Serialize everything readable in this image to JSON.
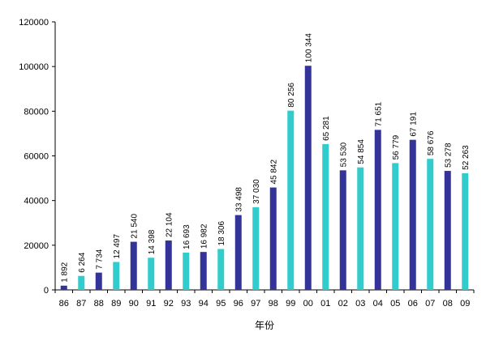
{
  "chart_data": {
    "type": "bar",
    "xlabel": "年份",
    "ylabel": "",
    "ylim": [
      0,
      120000
    ],
    "yticks": [
      0,
      20000,
      40000,
      60000,
      80000,
      100000,
      120000
    ],
    "grid": false,
    "legend": "none",
    "colors": {
      "dark": "#333399",
      "light": "#33CCCC"
    },
    "categories": [
      "86",
      "87",
      "88",
      "89",
      "90",
      "91",
      "92",
      "93",
      "94",
      "95",
      "96",
      "97",
      "98",
      "99",
      "00",
      "01",
      "02",
      "03",
      "04",
      "05",
      "06",
      "07",
      "08",
      "09"
    ],
    "values": [
      1892,
      6264,
      7734,
      12497,
      21540,
      14398,
      22104,
      16693,
      16982,
      18306,
      33498,
      37030,
      45842,
      80256,
      100344,
      65281,
      53530,
      54854,
      71651,
      56779,
      67191,
      58676,
      53278,
      52263
    ],
    "value_labels": [
      "1 892",
      "6 264",
      "7 734",
      "12 497",
      "21 540",
      "14 398",
      "22 104",
      "16 693",
      "16 982",
      "18 306",
      "33 498",
      "37 030",
      "45 842",
      "80 256",
      "100 344",
      "65 281",
      "53 530",
      "54 854",
      "71 651",
      "56 779",
      "67 191",
      "58 676",
      "53 278",
      "52 263"
    ],
    "bar_colors": [
      "dark",
      "light",
      "dark",
      "light",
      "dark",
      "light",
      "dark",
      "light",
      "dark",
      "light",
      "dark",
      "light",
      "dark",
      "light",
      "dark",
      "light",
      "dark",
      "light",
      "dark",
      "light",
      "dark",
      "light",
      "dark",
      "light"
    ]
  }
}
